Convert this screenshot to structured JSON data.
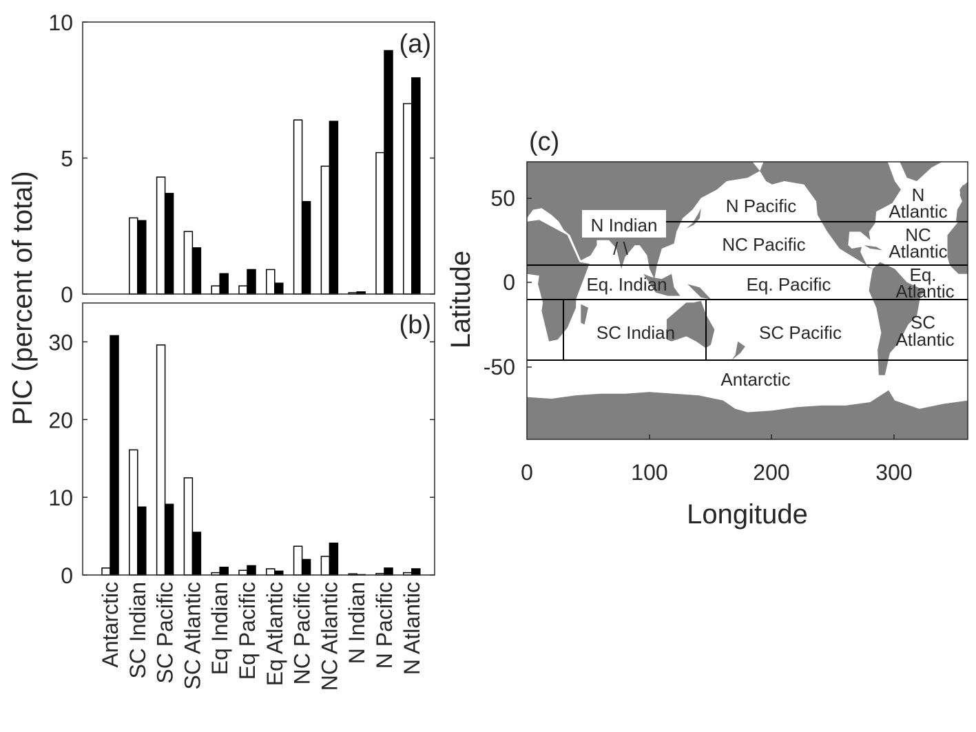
{
  "chart_data": [
    {
      "type": "bar",
      "panel_label": "(a)",
      "categories": [
        "Antarctic",
        "SC Indian",
        "SC Pacific",
        "SC Atlantic",
        "Eq Indian",
        "Eq Pacific",
        "Eq Atlantic",
        "NC Pacific",
        "NC Atlantic",
        "N Indian",
        "N Pacific",
        "N Atlantic"
      ],
      "series": [
        {
          "name": "open",
          "color": "#ffffff",
          "values": [
            0,
            2.8,
            4.3,
            2.3,
            0.3,
            0.3,
            0.9,
            6.4,
            4.7,
            0.05,
            5.2,
            7.0
          ]
        },
        {
          "name": "filled",
          "color": "#000000",
          "values": [
            0,
            2.7,
            3.7,
            1.7,
            0.75,
            0.9,
            0.4,
            3.4,
            6.35,
            0.08,
            8.95,
            7.95
          ]
        }
      ],
      "ylim": [
        0,
        10
      ],
      "yticks": [
        "0",
        "5",
        "10"
      ]
    },
    {
      "type": "bar",
      "panel_label": "(b)",
      "categories": [
        "Antarctic",
        "SC Indian",
        "SC Pacific",
        "SC Atlantic",
        "Eq Indian",
        "Eq Pacific",
        "Eq Atlantic",
        "NC Pacific",
        "NC Atlantic",
        "N Indian",
        "N Pacific",
        "N Atlantic"
      ],
      "series": [
        {
          "name": "open",
          "color": "#ffffff",
          "values": [
            0.9,
            16.1,
            29.6,
            12.5,
            0.3,
            0.6,
            0.8,
            3.7,
            2.4,
            0.15,
            0.2,
            0.3
          ]
        },
        {
          "name": "filled",
          "color": "#000000",
          "values": [
            30.8,
            8.75,
            9.1,
            5.5,
            1.0,
            1.2,
            0.5,
            2.0,
            4.1,
            0.05,
            0.9,
            0.8
          ]
        }
      ],
      "ylim": [
        0,
        35
      ],
      "yticks": [
        "0",
        "10",
        "20",
        "30"
      ]
    }
  ],
  "shared_ylabel": "PIC (percent of total)",
  "map": {
    "panel_label": "(c)",
    "xlabel": "Longitude",
    "ylabel": "Latitude",
    "xticks": [
      "0",
      "100",
      "200",
      "300"
    ],
    "yticks": [
      "50",
      "0",
      "-50"
    ],
    "land_color": "#808080",
    "region_labels": {
      "n_pacific": "N Pacific",
      "n_atlantic_1": "N",
      "n_atlantic_2": "Atlantic",
      "n_indian": "N Indian",
      "n_indian_marks": "/   \\",
      "nc_pacific": "NC Pacific",
      "nc_atlantic_1": "NC",
      "nc_atlantic_2": "Atlantic",
      "eq_indian": "Eq. Indian",
      "eq_pacific": "Eq. Pacific",
      "eq_atlantic_1": "Eq.",
      "eq_atlantic_2": "Atlantic",
      "sc_indian": "SC Indian",
      "sc_pacific": "SC Pacific",
      "sc_atlantic_1": "SC",
      "sc_atlantic_2": "Atlantic",
      "antarctic": "Antarctic"
    }
  }
}
